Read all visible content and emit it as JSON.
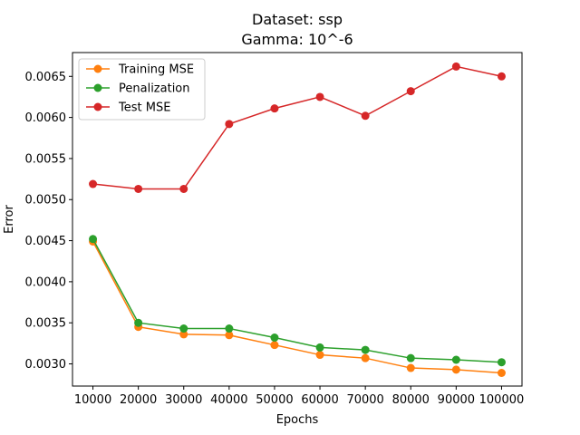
{
  "chart_data": {
    "type": "line",
    "title": "Dataset: ssp",
    "subtitle": "Gamma: 10^-6",
    "xlabel": "Epochs",
    "ylabel": "Error",
    "x": [
      10000,
      20000,
      30000,
      40000,
      50000,
      60000,
      70000,
      80000,
      90000,
      100000
    ],
    "x_tick_labels": [
      "10000",
      "20000",
      "30000",
      "40000",
      "50000",
      "60000",
      "70000",
      "80000",
      "90000",
      "100000"
    ],
    "y_ticks": [
      0.003,
      0.0035,
      0.004,
      0.0045,
      0.005,
      0.0055,
      0.006,
      0.0065
    ],
    "y_tick_labels": [
      "0.0030",
      "0.0035",
      "0.0040",
      "0.0045",
      "0.0050",
      "0.0055",
      "0.0060",
      "0.0065"
    ],
    "xlim": [
      5500,
      104500
    ],
    "ylim": [
      0.00273,
      0.00679
    ],
    "grid": false,
    "legend_position": "top-left",
    "series": [
      {
        "name": "Training MSE",
        "color": "#ff7f0e",
        "values": [
          0.00449,
          0.00345,
          0.00336,
          0.00335,
          0.00323,
          0.00311,
          0.00307,
          0.00295,
          0.00293,
          0.00289
        ]
      },
      {
        "name": "Penalization",
        "color": "#2ca02c",
        "values": [
          0.00452,
          0.0035,
          0.00343,
          0.00343,
          0.00332,
          0.0032,
          0.00317,
          0.00307,
          0.00305,
          0.00302
        ]
      },
      {
        "name": "Test MSE",
        "color": "#d62728",
        "values": [
          0.00519,
          0.00513,
          0.00513,
          0.00592,
          0.00611,
          0.00625,
          0.00602,
          0.00632,
          0.00662,
          0.0065
        ]
      }
    ]
  }
}
